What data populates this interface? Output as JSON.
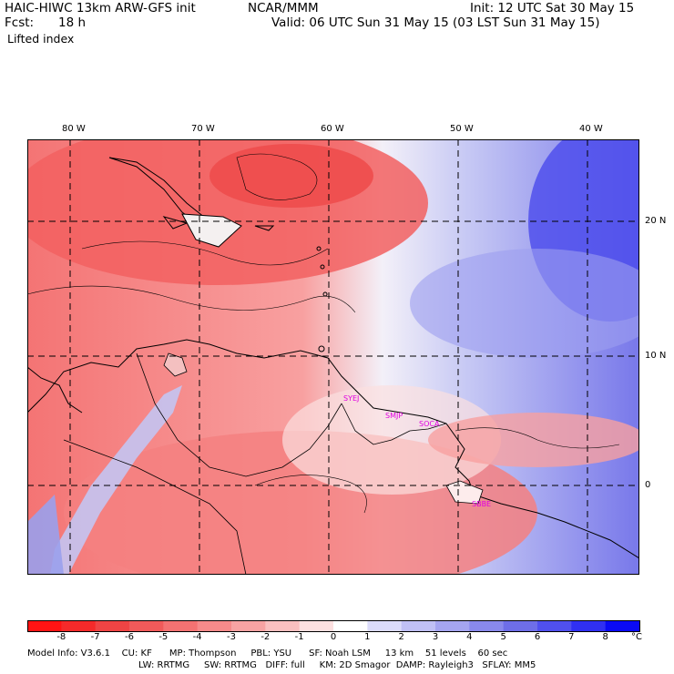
{
  "header": {
    "model_title": "HAIC-HIWC 13km ARW-GFS init",
    "institution": "NCAR/MMM",
    "init_time": "Init: 12 UTC Sat 30 May 15",
    "forecast_label": "Fcst:",
    "forecast_hours": "18 h",
    "valid_time": "Valid: 06 UTC Sun 31 May 15 (03 LST Sun 31 May 15)",
    "field_name": "Lifted index"
  },
  "map": {
    "lon_labels": [
      "80 W",
      "70 W",
      "60 W",
      "50 W",
      "40 W"
    ],
    "lat_labels": [
      "20 N",
      "10 N",
      "0"
    ],
    "station_labels": [
      "SYEJ",
      "SMJP",
      "SOCA",
      "SBBE"
    ],
    "station_color": "#e000e0"
  },
  "colorbar": {
    "tick_labels": [
      "-8",
      "-7",
      "-6",
      "-5",
      "-4",
      "-3",
      "-2",
      "-1",
      "0",
      "1",
      "2",
      "3",
      "4",
      "5",
      "6",
      "7",
      "8"
    ],
    "unit": "°C",
    "colors": [
      "#ff1414",
      "#f52a2a",
      "#ef4444",
      "#f15a5a",
      "#f47272",
      "#f68a8a",
      "#f8a3a3",
      "#fac0c0",
      "#fde0e0",
      "#ffffff",
      "#dcdcfa",
      "#c0c0f5",
      "#a5a5f0",
      "#8989ec",
      "#6e6ee8",
      "#5050ee",
      "#3030f2",
      "#0a0af5"
    ]
  },
  "footer": {
    "line1": "Model Info: V3.6.1    CU: KF      MP: Thompson     PBL: YSU      SF: Noah LSM     13 km    51 levels    60 sec",
    "line2": "LW: RRTMG     SW: RRTMG   DIFF: full     KM: 2D Smagor  DAMP: Rayleigh3   SFLAY: MM5"
  }
}
